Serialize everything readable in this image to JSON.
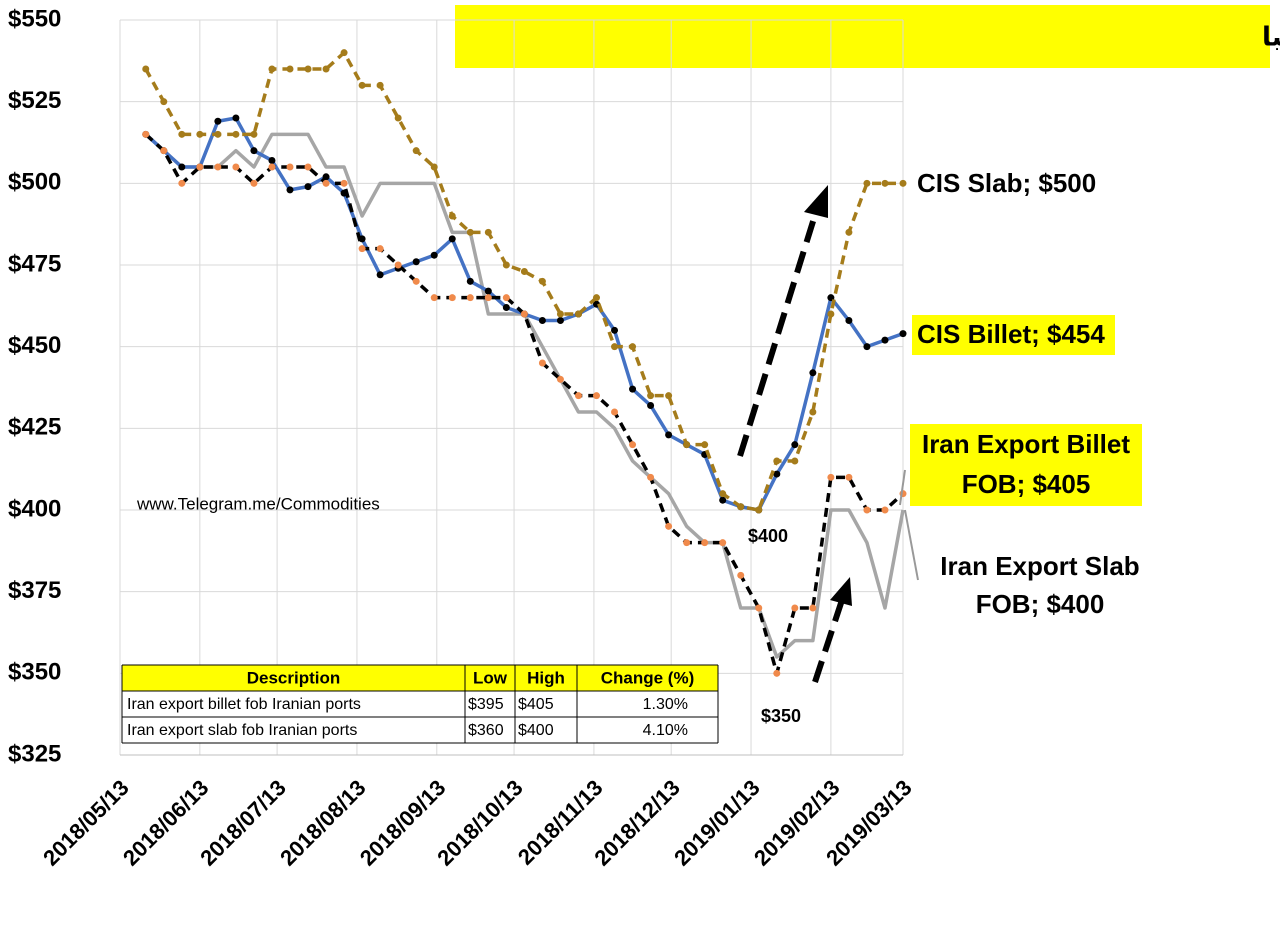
{
  "chart_data": {
    "type": "line",
    "title": "فولاد: روند تغییر هفتگی قیمتهای صادراتی ایران در مقایسه با رقبا",
    "x": [
      "2018/05/23",
      "2018/05/30",
      "2018/06/06",
      "2018/06/13",
      "2018/06/20",
      "2018/06/27",
      "2018/07/04",
      "2018/07/11",
      "2018/07/18",
      "2018/07/25",
      "2018/08/01",
      "2018/08/08",
      "2018/08/15",
      "2018/08/22",
      "2018/08/29",
      "2018/09/05",
      "2018/09/12",
      "2018/09/19",
      "2018/09/26",
      "2018/10/03",
      "2018/10/10",
      "2018/10/17",
      "2018/10/24",
      "2018/10/31",
      "2018/11/07",
      "2018/11/14",
      "2018/11/21",
      "2018/11/28",
      "2018/12/05",
      "2018/12/12",
      "2018/12/19",
      "2018/12/26",
      "2019/01/02",
      "2019/01/09",
      "2019/01/16",
      "2019/01/23",
      "2019/01/30",
      "2019/02/06",
      "2019/02/13",
      "2019/02/20",
      "2019/02/27",
      "2019/03/06",
      "2019/03/13"
    ],
    "xlim": [
      "2018/05/13",
      "2019/03/13"
    ],
    "xticks": [
      "2018/05/13",
      "2018/06/13",
      "2018/07/13",
      "2018/08/13",
      "2018/09/13",
      "2018/10/13",
      "2018/11/13",
      "2018/12/13",
      "2019/01/13",
      "2019/02/13",
      "2019/03/13"
    ],
    "ylim": [
      325,
      550
    ],
    "yticks": [
      {
        "value": 325,
        "label": "$325"
      },
      {
        "value": 350,
        "label": "$350"
      },
      {
        "value": 375,
        "label": "$375"
      },
      {
        "value": 400,
        "label": "$400"
      },
      {
        "value": 425,
        "label": "$425"
      },
      {
        "value": 450,
        "label": "$450"
      },
      {
        "value": 475,
        "label": "$475"
      },
      {
        "value": 500,
        "label": "$500"
      },
      {
        "value": 525,
        "label": "$525"
      },
      {
        "value": 550,
        "label": "$550"
      }
    ],
    "grid": true,
    "series": [
      {
        "color": "#4472c4",
        "marker_color": "#000000",
        "dashed": false,
        "values": [
          515,
          510,
          505,
          505,
          519,
          520,
          510,
          507,
          498,
          499,
          502,
          497,
          483,
          472,
          474,
          476,
          478,
          483,
          470,
          467,
          462,
          460,
          458,
          458,
          460,
          463,
          455,
          437,
          432,
          423,
          420,
          417,
          403,
          401,
          400,
          411,
          420,
          442,
          465,
          458,
          450,
          452,
          454
        ]
      },
      {
        "color": "#a57c1b",
        "marker_color": "#a57c1b",
        "dashed": true,
        "values": [
          535,
          525,
          515,
          515,
          515,
          515,
          515,
          535,
          535,
          535,
          535,
          540,
          530,
          530,
          520,
          510,
          505,
          490,
          485,
          485,
          475,
          473,
          470,
          460,
          460,
          465,
          450,
          450,
          435,
          435,
          420,
          420,
          405,
          401,
          400,
          415,
          415,
          430,
          460,
          485,
          500,
          500,
          500
        ]
      },
      {
        "color": "#000000",
        "marker_color": "#f08a4b",
        "dashed": true,
        "values": [
          515,
          510,
          500,
          505,
          505,
          505,
          500,
          505,
          505,
          505,
          500,
          500,
          480,
          480,
          475,
          470,
          465,
          465,
          465,
          465,
          465,
          460,
          445,
          440,
          435,
          435,
          430,
          420,
          410,
          395,
          390,
          390,
          390,
          380,
          370,
          350,
          370,
          370,
          410,
          410,
          400,
          400,
          405
        ]
      },
      {
        "color": "#a6a6a6",
        "marker_color": null,
        "dashed": false,
        "values": [
          515,
          510,
          505,
          505,
          505,
          510,
          505,
          515,
          515,
          515,
          505,
          505,
          490,
          500,
          500,
          500,
          500,
          485,
          485,
          460,
          460,
          460,
          450,
          440,
          430,
          430,
          425,
          415,
          410,
          405,
          395,
          390,
          390,
          370,
          370,
          355,
          360,
          360,
          400,
          400,
          390,
          370,
          400
        ]
      }
    ],
    "annotations": [
      "CIS Slab; $500",
      "CIS Billet; $454",
      "Iran Export Billet",
      "FOB; $405",
      "Iran Export Slab",
      "FOB; $400",
      "$400",
      "$350",
      "www.Telegram.me/Commodities"
    ],
    "table": {
      "columns": [
        "Description",
        "Low",
        "High",
        "Change (%)"
      ],
      "rows": [
        [
          "Iran export billet fob Iranian ports",
          "$395",
          "$405",
          "1.30%"
        ],
        [
          "Iran export slab fob Iranian ports",
          "$360",
          "$400",
          "4.10%"
        ]
      ]
    }
  }
}
